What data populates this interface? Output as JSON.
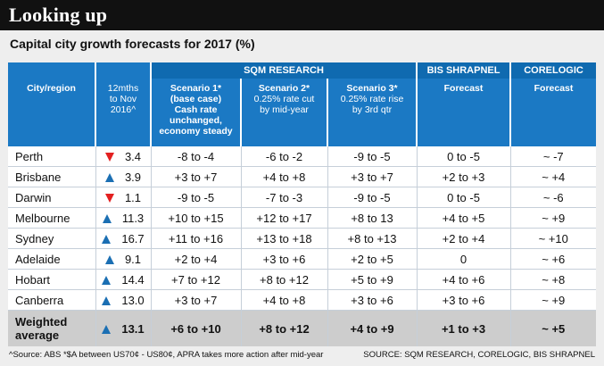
{
  "title": "Looking up",
  "subtitle": "Capital city growth forecasts for 2017 (%)",
  "groups": {
    "sqm": "SQM RESEARCH",
    "bis": "BIS SHRAPNEL",
    "corelogic": "CORELOGIC"
  },
  "columns": {
    "city": "City/region",
    "past": [
      "12mths",
      "to Nov",
      "2016^"
    ],
    "s1_title": "Scenario 1*",
    "s1_lines": [
      "(base case)",
      "Cash rate",
      "unchanged,",
      "economy steady"
    ],
    "s2_title": "Scenario 2*",
    "s2_lines": [
      "0.25% rate cut",
      "by mid-year"
    ],
    "s3_title": "Scenario 3*",
    "s3_lines": [
      "0.25% rate rise",
      "by 3rd qtr"
    ],
    "bis_forecast": "Forecast",
    "core_forecast": "Forecast"
  },
  "rows": [
    {
      "city": "Perth",
      "dir": "down",
      "past": "3.4",
      "s1": "-8 to -4",
      "s2": "-6 to -2",
      "s3": "-9 to -5",
      "bis": "0 to -5",
      "core": "~ -7"
    },
    {
      "city": "Brisbane",
      "dir": "up",
      "past": "3.9",
      "s1": "+3 to +7",
      "s2": "+4 to +8",
      "s3": "+3 to +7",
      "bis": "+2 to +3",
      "core": "~ +4"
    },
    {
      "city": "Darwin",
      "dir": "down",
      "past": "1.1",
      "s1": "-9 to -5",
      "s2": "-7 to -3",
      "s3": "-9 to -5",
      "bis": "0 to -5",
      "core": "~ -6"
    },
    {
      "city": "Melbourne",
      "dir": "up",
      "past": "11.3",
      "s1": "+10 to +15",
      "s2": "+12 to +17",
      "s3": "+8 to 13",
      "bis": "+4 to +5",
      "core": "~ +9"
    },
    {
      "city": "Sydney",
      "dir": "up",
      "past": "16.7",
      "s1": "+11 to +16",
      "s2": "+13 to +18",
      "s3": "+8 to +13",
      "bis": "+2 to +4",
      "core": "~ +10"
    },
    {
      "city": "Adelaide",
      "dir": "up",
      "past": "9.1",
      "s1": "+2 to +4",
      "s2": "+3 to +6",
      "s3": "+2 to +5",
      "bis": "0",
      "core": "~ +6"
    },
    {
      "city": "Hobart",
      "dir": "up",
      "past": "14.4",
      "s1": "+7 to +12",
      "s2": "+8 to +12",
      "s3": "+5 to +9",
      "bis": "+4 to +6",
      "core": "~ +8"
    },
    {
      "city": "Canberra",
      "dir": "up",
      "past": "13.0",
      "s1": "+3 to +7",
      "s2": "+4 to +8",
      "s3": "+3 to +6",
      "bis": "+3 to +6",
      "core": "~ +9"
    }
  ],
  "average": {
    "city_lines": [
      "Weighted",
      "average"
    ],
    "dir": "up",
    "past": "13.1",
    "s1": "+6 to +10",
    "s2": "+8 to +12",
    "s3": "+4 to +9",
    "bis": "+1 to +3",
    "core": "~ +5"
  },
  "footer": {
    "left": "^Source: ABS  *$A between US70¢ - US80¢, APRA takes more action after mid-year",
    "right": "SOURCE: SQM RESEARCH, CORELOGIC, BIS SHRAPNEL"
  },
  "colors": {
    "header_dark": "#0f6ab0",
    "header": "#1b79c4",
    "up": "#1b6fb3",
    "down": "#e32020"
  }
}
